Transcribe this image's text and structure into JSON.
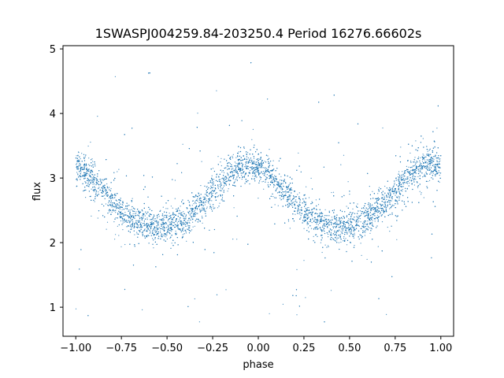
{
  "chart_data": {
    "type": "scatter",
    "title": "1SWASPJ004259.84-203250.4 Period 16276.66602s",
    "xlabel": "phase",
    "ylabel": "flux",
    "xlim": [
      -1.07,
      1.07
    ],
    "ylim": [
      0.55,
      5.05
    ],
    "xticks": [
      -1.0,
      -0.75,
      -0.5,
      -0.25,
      0.0,
      0.25,
      0.5,
      0.75,
      1.0
    ],
    "xtick_labels": [
      "−1.00",
      "−0.75",
      "−0.50",
      "−0.25",
      "0.00",
      "0.25",
      "0.50",
      "0.75",
      "1.00"
    ],
    "yticks": [
      1,
      2,
      3,
      4,
      5
    ],
    "ytick_labels": [
      "1",
      "2",
      "3",
      "4",
      "5"
    ],
    "grid": false,
    "legend": "none",
    "point_color": "#1f77b4",
    "curve": {
      "description": "folded light curve, two cycles over phase -1 to 1",
      "maxima_phase": [
        -1.0,
        -0.05,
        1.0
      ],
      "maxima_flux": 3.15,
      "minima_phase": [
        -0.55,
        0.42
      ],
      "minima_flux": 2.2,
      "scatter_sigma": 0.12,
      "outlier_range": [
        0.7,
        4.9
      ]
    }
  }
}
